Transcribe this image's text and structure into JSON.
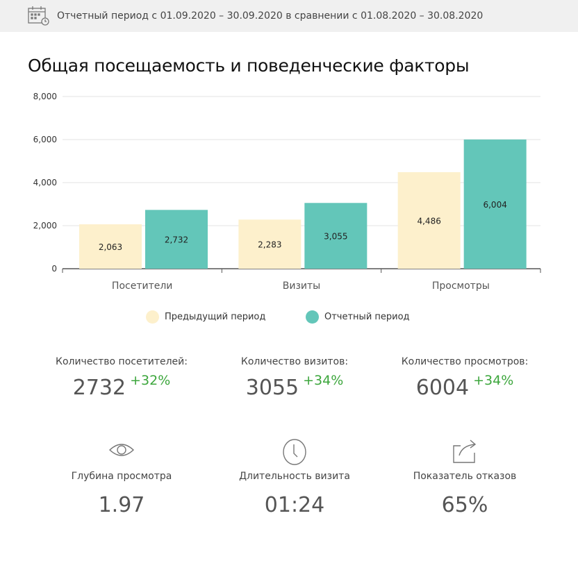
{
  "header": {
    "period_text": "Отчетный период с 01.09.2020 – 30.09.2020 в сравнении с 01.08.2020 – 30.08.2020",
    "icon": "calendar-clock-icon"
  },
  "title": "Общая посещаемость и поведенческие факторы",
  "chart_data": {
    "type": "bar",
    "categories": [
      "Посетители",
      "Визиты",
      "Просмотры"
    ],
    "series": [
      {
        "name": "Предыдущий период",
        "values": [
          2063,
          2283,
          4486
        ],
        "labels": [
          "2,063",
          "2,283",
          "4,486"
        ],
        "color": "#fdf0cc"
      },
      {
        "name": "Отчетный период",
        "values": [
          2732,
          3055,
          6004
        ],
        "labels": [
          "2,732",
          "3,055",
          "6,004"
        ],
        "color": "#63c6b9"
      }
    ],
    "ylim": [
      0,
      8000
    ],
    "yticks": [
      0,
      2000,
      4000,
      6000,
      8000
    ],
    "ytick_labels": [
      "0",
      "2,000",
      "4,000",
      "6,000",
      "8,000"
    ],
    "grid": true,
    "legend": "bottom"
  },
  "stats": [
    {
      "label": "Количество посетителей:",
      "value": "2732",
      "delta": "+32%"
    },
    {
      "label": "Количество визитов:",
      "value": "3055",
      "delta": "+34%"
    },
    {
      "label": "Количество просмотров:",
      "value": "6004",
      "delta": "+34%"
    }
  ],
  "kpis": [
    {
      "label": "Глубина просмотра",
      "value": "1.97",
      "icon": "eye-icon"
    },
    {
      "label": "Длительность визита",
      "value": "01:24",
      "icon": "clock-icon"
    },
    {
      "label": "Показатель отказов",
      "value": "65%",
      "icon": "share-exit-icon"
    }
  ]
}
